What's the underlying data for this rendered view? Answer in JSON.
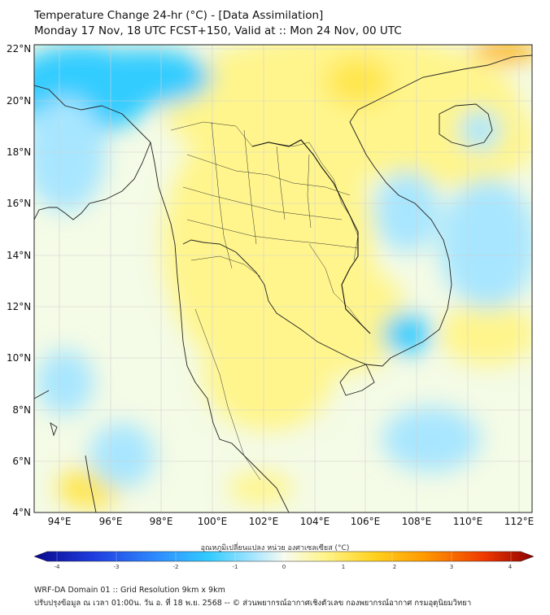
{
  "header": {
    "title_line1": "Temperature Change 24-hr (°C) - [Data Assimilation]",
    "title_line2": "Monday 17 Nov, 18 UTC FCST+150, Valid at :: Mon 24 Nov, 00 UTC"
  },
  "map": {
    "lat_labels": [
      "22°N",
      "20°N",
      "18°N",
      "16°N",
      "14°N",
      "12°N",
      "10°N",
      "8°N",
      "6°N",
      "4°N"
    ],
    "lon_labels": [
      "94°E",
      "96°E",
      "98°E",
      "100°E",
      "102°E",
      "104°E",
      "106°E",
      "108°E",
      "110°E",
      "112°E"
    ],
    "lat_range": [
      4,
      22
    ],
    "lon_range": [
      93,
      112.5
    ],
    "field_colors": {
      "cyan": "#33ccff",
      "light_blue": "#a8e6ff",
      "near_zero": "#f4fbe6",
      "light_yellow": "#fff58c",
      "yellow": "#ffe64d",
      "orange": "#ffb000"
    },
    "coastline_color": "#222222"
  },
  "colorbar": {
    "title": "อุณหภูมิเปลี่ยนแปลง หน่วย องศาเซลเซียส (°C)",
    "ticks": [
      "-4",
      "-3",
      "-2",
      "-1",
      "0",
      "1",
      "2",
      "3",
      "4"
    ],
    "range": [
      -4,
      4
    ],
    "colors": [
      "#0a0a8c",
      "#1f3de0",
      "#2f8fff",
      "#33ccff",
      "#a8e6ff",
      "#f7fbf0",
      "#fff58c",
      "#ffd21f",
      "#ff9a00",
      "#f03a00",
      "#8c0000"
    ]
  },
  "footer": {
    "line1": "WRF-DA Domain 01 :: Grid Resolution 9km x 9km",
    "line2": "ปรับปรุงข้อมูล ณ เวลา 01:00น. วัน อ. ที่ 18 พ.ย. 2568 -- © ส่วนพยากรณ์อากาศเชิงตัวเลข กองพยากรณ์อากาศ กรมอุตุนิยมวิทยา"
  }
}
